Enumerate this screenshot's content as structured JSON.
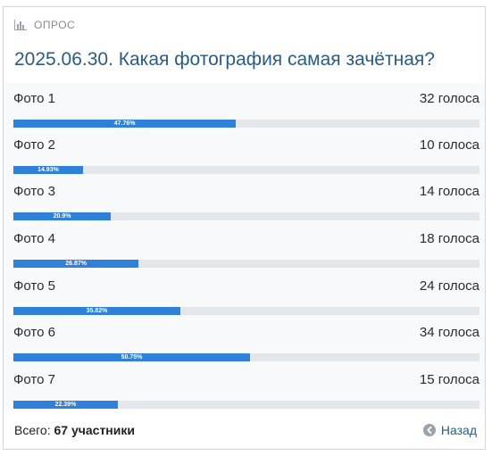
{
  "poll": {
    "header_label": "ОПРОС",
    "title": "2025.06.30. Какая фотография самая зачётная?",
    "options": [
      {
        "label": "Фото 1",
        "votes": "32 голоса",
        "percent_text": "47.76%",
        "percent": 47.76
      },
      {
        "label": "Фото 2",
        "votes": "10 голоса",
        "percent_text": "14.93%",
        "percent": 14.93
      },
      {
        "label": "Фото 3",
        "votes": "14 голоса",
        "percent_text": "20.9%",
        "percent": 20.9
      },
      {
        "label": "Фото 4",
        "votes": "18 голоса",
        "percent_text": "26.87%",
        "percent": 26.87
      },
      {
        "label": "Фото 5",
        "votes": "24 голоса",
        "percent_text": "35.82%",
        "percent": 35.82
      },
      {
        "label": "Фото 6",
        "votes": "34 голоса",
        "percent_text": "50.75%",
        "percent": 50.75
      },
      {
        "label": "Фото 7",
        "votes": "15 голоса",
        "percent_text": "22.39%",
        "percent": 22.39
      }
    ],
    "footer": {
      "total_prefix": "Всего:",
      "total_value": "67 участники",
      "back_label": "Назад"
    }
  },
  "icons": {
    "header": "bar-chart-icon",
    "back": "arrow-left-circle-icon"
  },
  "colors": {
    "title": "#2a5b84",
    "bar_fill": "#2f80d8",
    "bar_track": "#e4e7ea",
    "options_bg": "#f8f9fb"
  }
}
